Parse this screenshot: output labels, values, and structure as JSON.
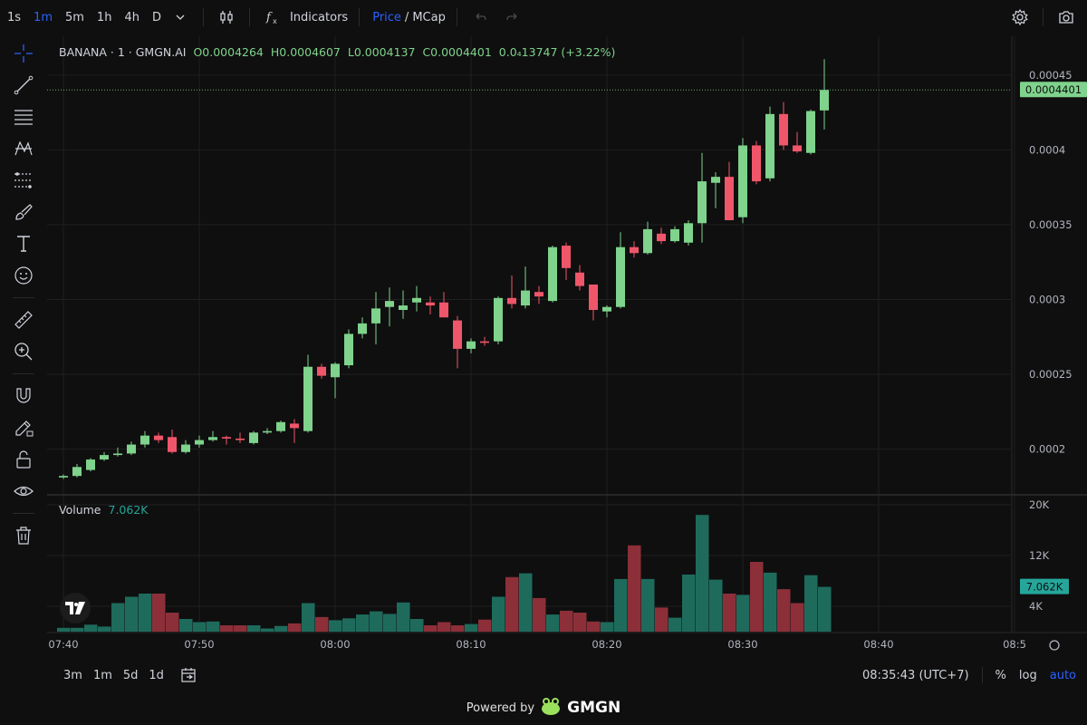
{
  "toolbar": {
    "intervals": [
      "1s",
      "1m",
      "5m",
      "1h",
      "4h",
      "D"
    ],
    "active_interval": "1m",
    "indicators_label": "Indicators",
    "price_label": "Price",
    "slash": "/",
    "mcap_label": "MCap"
  },
  "legend": {
    "symbol": "BANANA · 1 · GMGN.AI",
    "open": "O0.0004264",
    "high": "H0.0004607",
    "low": "L0.0004137",
    "close": "C0.0004401",
    "change": "0.0₄13747 (+3.22%)"
  },
  "volume_legend": {
    "label": "Volume",
    "value": "7.062K"
  },
  "bottom": {
    "ranges": [
      "3m",
      "1m",
      "5d",
      "1d"
    ],
    "time": "08:35:43 (UTC+7)",
    "percent": "%",
    "log": "log",
    "auto": "auto"
  },
  "powered": {
    "text": "Powered by",
    "brand": "GMGN"
  },
  "colors": {
    "up": "#7fd38c",
    "down": "#f0566a",
    "vol_up": "#1e6b5c",
    "vol_down": "#8c2f39",
    "accent": "#2962ff"
  },
  "chart_data": {
    "type": "candlestick",
    "y_ticks": [
      "0.0002",
      "0.00025",
      "0.0003",
      "0.00035",
      "0.0004",
      "0.00045"
    ],
    "y_tick_values": [
      0.0002,
      0.00025,
      0.0003,
      0.00035,
      0.0004,
      0.00045
    ],
    "current_price_label": "0.0004401",
    "current_price": 0.0004401,
    "x_ticks": [
      "07:40",
      "07:50",
      "08:00",
      "08:10",
      "08:20",
      "08:30",
      "08:40",
      "08:5"
    ],
    "x_tick_minutes": [
      0,
      10,
      20,
      30,
      40,
      50,
      60,
      70
    ],
    "vol_ticks": [
      "4K",
      "12K",
      "20K"
    ],
    "vol_tick_values": [
      4000,
      12000,
      20000
    ],
    "volume_label": "7.062K",
    "volume_current": 7062,
    "first_minute": 0,
    "candles": [
      [
        0.000181,
        0.000183,
        0.00018,
        0.000182
      ],
      [
        0.000182,
        0.00019,
        0.000181,
        0.000188
      ],
      [
        0.000186,
        0.000194,
        0.000185,
        0.000193
      ],
      [
        0.000193,
        0.000198,
        0.000192,
        0.000196
      ],
      [
        0.000196,
        0.000201,
        0.000195,
        0.000197
      ],
      [
        0.000197,
        0.000205,
        0.000196,
        0.000203
      ],
      [
        0.000203,
        0.000212,
        0.000201,
        0.000209
      ],
      [
        0.000209,
        0.000211,
        0.000204,
        0.000206
      ],
      [
        0.000208,
        0.000213,
        0.000197,
        0.000198
      ],
      [
        0.000198,
        0.000206,
        0.000197,
        0.000203
      ],
      [
        0.000203,
        0.000209,
        0.000201,
        0.000206
      ],
      [
        0.000206,
        0.000212,
        0.000205,
        0.000208
      ],
      [
        0.000208,
        0.000209,
        0.000203,
        0.000207
      ],
      [
        0.000207,
        0.000211,
        0.000204,
        0.000206
      ],
      [
        0.000204,
        0.000212,
        0.000203,
        0.000211
      ],
      [
        0.000211,
        0.000214,
        0.00021,
        0.000212
      ],
      [
        0.000212,
        0.000219,
        0.000211,
        0.000218
      ],
      [
        0.000217,
        0.00022,
        0.000204,
        0.000214
      ],
      [
        0.000212,
        0.000263,
        0.000211,
        0.000255
      ],
      [
        0.000255,
        0.000257,
        0.000247,
        0.000249
      ],
      [
        0.000248,
        0.000258,
        0.000234,
        0.000257
      ],
      [
        0.000256,
        0.00028,
        0.000254,
        0.000277
      ],
      [
        0.000277,
        0.000288,
        0.000274,
        0.000284
      ],
      [
        0.000284,
        0.000305,
        0.00027,
        0.000294
      ],
      [
        0.000295,
        0.000308,
        0.000282,
        0.000299
      ],
      [
        0.000293,
        0.000306,
        0.000287,
        0.000296
      ],
      [
        0.000298,
        0.000309,
        0.000292,
        0.000301
      ],
      [
        0.000298,
        0.000302,
        0.00029,
        0.000296
      ],
      [
        0.000298,
        0.000305,
        0.00029,
        0.000288
      ],
      [
        0.000286,
        0.000289,
        0.000254,
        0.000267
      ],
      [
        0.000267,
        0.000274,
        0.000264,
        0.000272
      ],
      [
        0.000272,
        0.000275,
        0.000269,
        0.000271
      ],
      [
        0.000272,
        0.000302,
        0.00027,
        0.000301
      ],
      [
        0.000301,
        0.000316,
        0.000294,
        0.000297
      ],
      [
        0.000296,
        0.000322,
        0.000294,
        0.000306
      ],
      [
        0.000305,
        0.000309,
        0.000297,
        0.000302
      ],
      [
        0.000299,
        0.000336,
        0.000298,
        0.000335
      ],
      [
        0.000336,
        0.000338,
        0.000313,
        0.000321
      ],
      [
        0.000318,
        0.000323,
        0.000306,
        0.000309
      ],
      [
        0.00031,
        0.00031,
        0.000286,
        0.000293
      ],
      [
        0.000292,
        0.000296,
        0.000288,
        0.000295
      ],
      [
        0.000295,
        0.000345,
        0.000294,
        0.000335
      ],
      [
        0.000335,
        0.000339,
        0.000328,
        0.000331
      ],
      [
        0.000331,
        0.000352,
        0.00033,
        0.000347
      ],
      [
        0.000344,
        0.000348,
        0.000337,
        0.000339
      ],
      [
        0.000339,
        0.000349,
        0.000338,
        0.000347
      ],
      [
        0.000338,
        0.000353,
        0.000336,
        0.000351
      ],
      [
        0.000351,
        0.000398,
        0.000338,
        0.000379
      ],
      [
        0.000378,
        0.000385,
        0.000361,
        0.000382
      ],
      [
        0.000382,
        0.000392,
        0.000353,
        0.000353
      ],
      [
        0.000355,
        0.000408,
        0.000351,
        0.000403
      ],
      [
        0.000403,
        0.000406,
        0.000377,
        0.000379
      ],
      [
        0.000381,
        0.000429,
        0.000379,
        0.000424
      ],
      [
        0.000424,
        0.000432,
        0.0004,
        0.000403
      ],
      [
        0.000403,
        0.000412,
        0.000398,
        0.000399
      ],
      [
        0.000398,
        0.000427,
        0.000397,
        0.000426
      ],
      [
        0.0004264,
        0.0004607,
        0.0004137,
        0.0004401
      ]
    ],
    "volumes": [
      600,
      600,
      1100,
      800,
      4500,
      5500,
      6000,
      6000,
      3000,
      2000,
      1500,
      1600,
      1000,
      1000,
      1000,
      500,
      900,
      1300,
      4500,
      2300,
      1800,
      2100,
      2700,
      3200,
      2800,
      4600,
      2000,
      1000,
      1500,
      1000,
      1200,
      1900,
      5500,
      8600,
      9200,
      5300,
      2700,
      3300,
      3000,
      1600,
      1500,
      8300,
      13600,
      8300,
      3800,
      2200,
      9000,
      18400,
      8200,
      6000,
      5800,
      11000,
      9300,
      6700,
      4500,
      8900,
      7062
    ]
  }
}
